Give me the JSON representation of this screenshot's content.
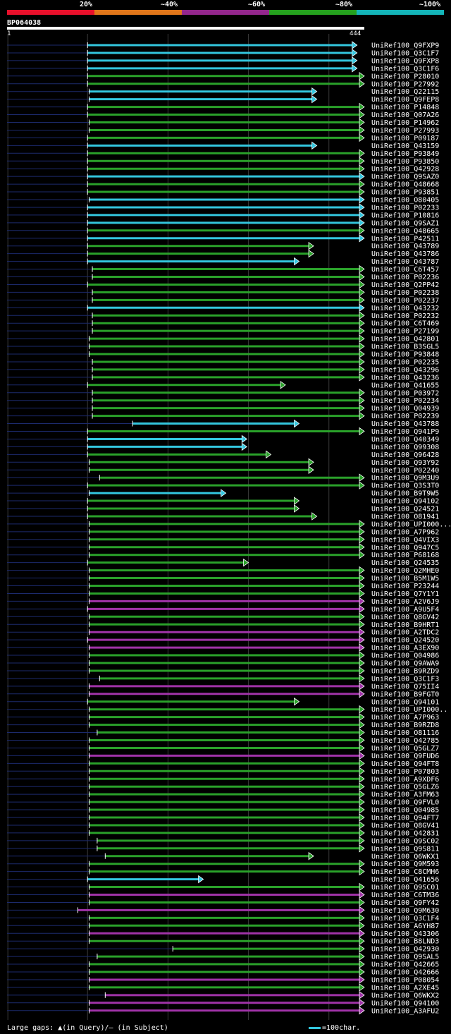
{
  "colors": {
    "cyan": "#33c6de",
    "green": "#2aa12a",
    "purple": "#a033a8",
    "navy": "#1c2a6c",
    "marker": "#ffff80"
  },
  "legend": {
    "segments": [
      {
        "label": "20%",
        "color": "#e8102b"
      },
      {
        "label": "~40%",
        "color": "#e0761a"
      },
      {
        "label": "~60%",
        "color": "#93268c"
      },
      {
        "label": "~80%",
        "color": "#25a11e"
      },
      {
        "label": "~100%",
        "color": "#14b5b9"
      }
    ]
  },
  "query": {
    "id": "BP064038",
    "start": "1",
    "end": "444"
  },
  "footer": {
    "gaps_text": "Large gaps: ▲(in Query)/– (in Subject)",
    "scale_text": "=100char."
  },
  "chart_data": {
    "type": "alignment",
    "query_length": 444,
    "hits": [
      {
        "id": "UniRef100_Q9FXP9",
        "color": "cyan",
        "s": 100,
        "e": 435
      },
      {
        "id": "UniRef100_Q3C1F7",
        "color": "cyan",
        "s": 100,
        "e": 435
      },
      {
        "id": "UniRef100_Q9FXP8",
        "color": "cyan",
        "s": 100,
        "e": 435
      },
      {
        "id": "UniRef100_Q3C1F6",
        "color": "cyan",
        "s": 100,
        "e": 435
      },
      {
        "id": "UniRef100_P28010",
        "color": "green",
        "s": 100,
        "e": 444
      },
      {
        "id": "UniRef100_P27992",
        "color": "green",
        "s": 100,
        "e": 444
      },
      {
        "id": "UniRef100_Q22115",
        "color": "cyan",
        "s": 102,
        "e": 385
      },
      {
        "id": "UniRef100_Q9FEP8",
        "color": "cyan",
        "s": 102,
        "e": 385
      },
      {
        "id": "UniRef100_P14848",
        "color": "green",
        "s": 100,
        "e": 444
      },
      {
        "id": "UniRef100_Q07A26",
        "color": "green",
        "s": 100,
        "e": 444
      },
      {
        "id": "UniRef100_P14962",
        "color": "green",
        "s": 102,
        "e": 444
      },
      {
        "id": "UniRef100_P27993",
        "color": "green",
        "s": 102,
        "e": 444
      },
      {
        "id": "UniRef100_P09187",
        "color": "green",
        "s": 100,
        "e": 444
      },
      {
        "id": "UniRef100_Q43159",
        "color": "cyan",
        "s": 100,
        "e": 385
      },
      {
        "id": "UniRef100_P93849",
        "color": "green",
        "s": 100,
        "e": 444
      },
      {
        "id": "UniRef100_P93850",
        "color": "green",
        "s": 100,
        "e": 444
      },
      {
        "id": "UniRef100_Q42928",
        "color": "green",
        "s": 100,
        "e": 444
      },
      {
        "id": "UniRef100_Q9SAZ0",
        "color": "cyan",
        "s": 100,
        "e": 444
      },
      {
        "id": "UniRef100_Q48668",
        "color": "green",
        "s": 100,
        "e": 444
      },
      {
        "id": "UniRef100_P93851",
        "color": "green",
        "s": 100,
        "e": 444
      },
      {
        "id": "UniRef100_O80405",
        "color": "cyan",
        "s": 102,
        "e": 444
      },
      {
        "id": "UniRef100_P02233",
        "color": "cyan",
        "s": 100,
        "e": 444
      },
      {
        "id": "UniRef100_P10816",
        "color": "cyan",
        "s": 100,
        "e": 444
      },
      {
        "id": "UniRef100_Q9SAZ1",
        "color": "cyan",
        "s": 100,
        "e": 444
      },
      {
        "id": "UniRef100_Q48665",
        "color": "green",
        "s": 100,
        "e": 444
      },
      {
        "id": "UniRef100_P42511",
        "color": "cyan",
        "s": 100,
        "e": 444
      },
      {
        "id": "UniRef100_Q43789",
        "color": "green",
        "s": 100,
        "e": 381
      },
      {
        "id": "UniRef100_Q43786",
        "color": "green",
        "s": 100,
        "e": 381
      },
      {
        "id": "UniRef100_Q43787",
        "color": "cyan",
        "s": 100,
        "e": 363
      },
      {
        "id": "UniRef100_C6T457",
        "color": "green",
        "s": 106,
        "e": 444
      },
      {
        "id": "UniRef100_P02236",
        "color": "green",
        "s": 106,
        "e": 444
      },
      {
        "id": "UniRef100_Q2PP42",
        "color": "green",
        "s": 100,
        "e": 444
      },
      {
        "id": "UniRef100_P02238",
        "color": "green",
        "s": 106,
        "e": 444
      },
      {
        "id": "UniRef100_P02237",
        "color": "green",
        "s": 106,
        "e": 444
      },
      {
        "id": "UniRef100_Q43232",
        "color": "cyan",
        "s": 100,
        "e": 444
      },
      {
        "id": "UniRef100_P02232",
        "color": "green",
        "s": 106,
        "e": 444
      },
      {
        "id": "UniRef100_C6T469",
        "color": "green",
        "s": 106,
        "e": 444
      },
      {
        "id": "UniRef100_P27199",
        "color": "green",
        "s": 106,
        "e": 444
      },
      {
        "id": "UniRef100_Q42801",
        "color": "green",
        "s": 102,
        "e": 444
      },
      {
        "id": "UniRef100_B3SGL5",
        "color": "green",
        "s": 102,
        "e": 444
      },
      {
        "id": "UniRef100_P93848",
        "color": "green",
        "s": 102,
        "e": 444
      },
      {
        "id": "UniRef100_P02235",
        "color": "green",
        "s": 106,
        "e": 444
      },
      {
        "id": "UniRef100_Q43296",
        "color": "green",
        "s": 106,
        "e": 444
      },
      {
        "id": "UniRef100_Q43236",
        "color": "green",
        "s": 106,
        "e": 444
      },
      {
        "id": "UniRef100_Q41655",
        "color": "green",
        "s": 100,
        "e": 346
      },
      {
        "id": "UniRef100_P03972",
        "color": "green",
        "s": 106,
        "e": 444
      },
      {
        "id": "UniRef100_P02234",
        "color": "green",
        "s": 106,
        "e": 444
      },
      {
        "id": "UniRef100_Q04939",
        "color": "green",
        "s": 106,
        "e": 444
      },
      {
        "id": "UniRef100_P02239",
        "color": "green",
        "s": 106,
        "e": 444
      },
      {
        "id": "UniRef100_Q43788",
        "color": "cyan",
        "s": 156,
        "e": 363
      },
      {
        "id": "UniRef100_Q941P9",
        "color": "green",
        "s": 100,
        "e": 444
      },
      {
        "id": "UniRef100_Q40349",
        "color": "cyan",
        "s": 100,
        "e": 298
      },
      {
        "id": "UniRef100_Q99308",
        "color": "cyan",
        "s": 100,
        "e": 298
      },
      {
        "id": "UniRef100_Q96428",
        "color": "green",
        "s": 100,
        "e": 328
      },
      {
        "id": "UniRef100_Q93Y92",
        "color": "green",
        "s": 102,
        "e": 381
      },
      {
        "id": "UniRef100_P02240",
        "color": "green",
        "s": 102,
        "e": 381
      },
      {
        "id": "UniRef100_Q9M3U9",
        "color": "green",
        "s": 115,
        "e": 444
      },
      {
        "id": "UniRef100_Q3S3T0",
        "color": "green",
        "s": 100,
        "e": 444
      },
      {
        "id": "UniRef100_B9T9W5",
        "color": "cyan",
        "s": 102,
        "e": 272
      },
      {
        "id": "UniRef100_Q94102",
        "color": "green",
        "s": 100,
        "e": 363
      },
      {
        "id": "UniRef100_Q24521",
        "color": "green",
        "s": 100,
        "e": 363
      },
      {
        "id": "UniRef100_O81941",
        "color": "green",
        "s": 100,
        "e": 385
      },
      {
        "id": "UniRef100_UPI000...",
        "color": "green",
        "s": 102,
        "e": 444
      },
      {
        "id": "UniRef100_A7P962",
        "color": "green",
        "s": 102,
        "e": 444
      },
      {
        "id": "UniRef100_Q4VIX3",
        "color": "green",
        "s": 102,
        "e": 444
      },
      {
        "id": "UniRef100_Q947C5",
        "color": "green",
        "s": 102,
        "e": 444
      },
      {
        "id": "UniRef100_P68168",
        "color": "green",
        "s": 102,
        "e": 444
      },
      {
        "id": "UniRef100_Q24535",
        "color": "green",
        "s": 100,
        "e": 300
      },
      {
        "id": "UniRef100_Q2MHE0",
        "color": "green",
        "s": 102,
        "e": 444
      },
      {
        "id": "UniRef100_B5M1W5",
        "color": "green",
        "s": 102,
        "e": 444
      },
      {
        "id": "UniRef100_P23244",
        "color": "green",
        "s": 102,
        "e": 444
      },
      {
        "id": "UniRef100_Q7Y1Y1",
        "color": "green",
        "s": 102,
        "e": 444
      },
      {
        "id": "UniRef100_A2V6J9",
        "color": "purple",
        "s": 102,
        "e": 444
      },
      {
        "id": "UniRef100_A9U5F4",
        "color": "purple",
        "s": 100,
        "e": 444
      },
      {
        "id": "UniRef100_Q8GV42",
        "color": "green",
        "s": 102,
        "e": 444
      },
      {
        "id": "UniRef100_B9HRT1",
        "color": "green",
        "s": 102,
        "e": 444
      },
      {
        "id": "UniRef100_A2TDC2",
        "color": "purple",
        "s": 102,
        "e": 444
      },
      {
        "id": "UniRef100_Q24520",
        "color": "purple",
        "s": 100,
        "e": 444
      },
      {
        "id": "UniRef100_A3EX90",
        "color": "purple",
        "s": 102,
        "e": 444
      },
      {
        "id": "UniRef100_Q04986",
        "color": "green",
        "s": 102,
        "e": 444
      },
      {
        "id": "UniRef100_Q9AWA9",
        "color": "green",
        "s": 102,
        "e": 444
      },
      {
        "id": "UniRef100_B9RZD9",
        "color": "green",
        "s": 102,
        "e": 444
      },
      {
        "id": "UniRef100_Q3C1F3",
        "color": "green",
        "s": 115,
        "e": 444
      },
      {
        "id": "UniRef100_Q75II4",
        "color": "purple",
        "s": 102,
        "e": 444
      },
      {
        "id": "UniRef100_B9FGT0",
        "color": "purple",
        "s": 102,
        "e": 444
      },
      {
        "id": "UniRef100_Q94101",
        "color": "green",
        "s": 100,
        "e": 363
      },
      {
        "id": "UniRef100_UPI000..",
        "color": "green",
        "s": 102,
        "e": 444
      },
      {
        "id": "UniRef100_A7P963",
        "color": "green",
        "s": 102,
        "e": 444
      },
      {
        "id": "UniRef100_B9RZD8",
        "color": "green",
        "s": 102,
        "e": 444
      },
      {
        "id": "UniRef100_O81116",
        "color": "green",
        "s": 112,
        "e": 444
      },
      {
        "id": "UniRef100_Q42785",
        "color": "green",
        "s": 102,
        "e": 444
      },
      {
        "id": "UniRef100_Q5GLZ7",
        "color": "green",
        "s": 102,
        "e": 444
      },
      {
        "id": "UniRef100_Q9FUD6",
        "color": "purple",
        "s": 102,
        "e": 444
      },
      {
        "id": "UniRef100_Q94FT8",
        "color": "green",
        "s": 102,
        "e": 444
      },
      {
        "id": "UniRef100_P07803",
        "color": "green",
        "s": 102,
        "e": 444
      },
      {
        "id": "UniRef100_A9XDF6",
        "color": "green",
        "s": 102,
        "e": 444
      },
      {
        "id": "UniRef100_Q5GLZ6",
        "color": "green",
        "s": 102,
        "e": 444
      },
      {
        "id": "UniRef100_A3FM63",
        "color": "green",
        "s": 102,
        "e": 444
      },
      {
        "id": "UniRef100_Q9FVL0",
        "color": "green",
        "s": 102,
        "e": 444
      },
      {
        "id": "UniRef100_Q04985",
        "color": "green",
        "s": 102,
        "e": 444
      },
      {
        "id": "UniRef100_Q94FT7",
        "color": "green",
        "s": 102,
        "e": 444
      },
      {
        "id": "UniRef100_Q8GV41",
        "color": "green",
        "s": 102,
        "e": 444
      },
      {
        "id": "UniRef100_Q42831",
        "color": "green",
        "s": 102,
        "e": 444
      },
      {
        "id": "UniRef100_Q9SC02",
        "color": "green",
        "s": 112,
        "e": 444
      },
      {
        "id": "UniRef100_Q9S811",
        "color": "green",
        "s": 112,
        "e": 444
      },
      {
        "id": "UniRef100_Q6WKX1",
        "color": "green",
        "s": 122,
        "e": 381
      },
      {
        "id": "UniRef100_Q9M593",
        "color": "green",
        "s": 102,
        "e": 444
      },
      {
        "id": "UniRef100_C8CMH6",
        "color": "green",
        "s": 102,
        "e": 444
      },
      {
        "id": "UniRef100_Q41656",
        "color": "cyan",
        "s": 100,
        "e": 244
      },
      {
        "id": "UniRef100_Q9SC01",
        "color": "green",
        "s": 102,
        "e": 444
      },
      {
        "id": "UniRef100_C6TM36",
        "color": "purple",
        "s": 102,
        "e": 444
      },
      {
        "id": "UniRef100_Q9FY42",
        "color": "green",
        "s": 102,
        "e": 444
      },
      {
        "id": "UniRef100_Q9M630",
        "color": "purple",
        "s": 88,
        "e": 444
      },
      {
        "id": "UniRef100_Q3C1F4",
        "color": "green",
        "s": 102,
        "e": 444
      },
      {
        "id": "UniRef100_A6YH87",
        "color": "green",
        "s": 102,
        "e": 444
      },
      {
        "id": "UniRef100_Q43306",
        "color": "purple",
        "s": 102,
        "e": 444
      },
      {
        "id": "UniRef100_B8LND3",
        "color": "green",
        "s": 102,
        "e": 444
      },
      {
        "id": "UniRef100_Q42930",
        "color": "green",
        "s": 206,
        "e": 444
      },
      {
        "id": "UniRef100_Q9SAL5",
        "color": "green",
        "s": 112,
        "e": 444
      },
      {
        "id": "UniRef100_Q42665",
        "color": "green",
        "s": 102,
        "e": 444
      },
      {
        "id": "UniRef100_Q42666",
        "color": "green",
        "s": 102,
        "e": 444
      },
      {
        "id": "UniRef100_P08054",
        "color": "purple",
        "s": 102,
        "e": 444
      },
      {
        "id": "UniRef100_A2XE45",
        "color": "green",
        "s": 102,
        "e": 444
      },
      {
        "id": "UniRef100_Q6WKX2",
        "color": "purple",
        "s": 122,
        "e": 444
      },
      {
        "id": "UniRef100_Q94100",
        "color": "purple",
        "s": 102,
        "e": 444
      },
      {
        "id": "UniRef100_A3AFU2",
        "color": "purple",
        "s": 102,
        "e": 444
      }
    ]
  }
}
